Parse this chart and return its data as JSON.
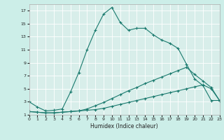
{
  "xlabel": "Humidex (Indice chaleur)",
  "bg_color": "#cceee8",
  "grid_bg_color": "#d8eeea",
  "line_color": "#1a7a6e",
  "grid_color": "#ffffff",
  "ylim": [
    1,
    18
  ],
  "xlim": [
    0,
    23
  ],
  "yticks": [
    1,
    3,
    5,
    7,
    9,
    11,
    13,
    15,
    17
  ],
  "xticks": [
    0,
    1,
    2,
    3,
    4,
    5,
    6,
    7,
    8,
    9,
    10,
    11,
    12,
    13,
    14,
    15,
    16,
    17,
    18,
    19,
    20,
    21,
    22,
    23
  ],
  "line1_x": [
    0,
    1,
    2,
    3,
    4,
    5,
    6,
    7,
    8,
    9,
    10,
    11,
    12,
    13,
    14,
    15,
    16,
    17,
    18,
    19,
    20,
    21,
    22,
    23
  ],
  "line1_y": [
    3.0,
    2.2,
    1.6,
    1.7,
    1.9,
    4.5,
    7.5,
    11.0,
    14.0,
    16.5,
    17.5,
    15.2,
    14.0,
    14.3,
    14.3,
    13.3,
    12.5,
    12.0,
    11.2,
    8.8,
    6.5,
    5.5,
    3.2,
    3.2
  ],
  "line2_x": [
    0,
    1,
    2,
    3,
    4,
    5,
    6,
    7,
    8,
    9,
    10,
    11,
    12,
    13,
    14,
    15,
    16,
    17,
    18,
    19,
    20,
    21,
    22,
    23
  ],
  "line2_y": [
    1.5,
    1.4,
    1.3,
    1.3,
    1.4,
    1.5,
    1.6,
    1.9,
    2.4,
    2.9,
    3.5,
    4.1,
    4.7,
    5.2,
    5.8,
    6.3,
    6.8,
    7.3,
    7.8,
    8.3,
    7.2,
    6.2,
    5.2,
    3.2
  ],
  "line3_x": [
    0,
    1,
    2,
    3,
    4,
    5,
    6,
    7,
    8,
    9,
    10,
    11,
    12,
    13,
    14,
    15,
    16,
    17,
    18,
    19,
    20,
    21,
    22,
    23
  ],
  "line3_y": [
    1.5,
    1.4,
    1.3,
    1.3,
    1.4,
    1.5,
    1.6,
    1.7,
    1.8,
    2.0,
    2.3,
    2.6,
    2.9,
    3.2,
    3.5,
    3.8,
    4.1,
    4.4,
    4.7,
    5.0,
    5.3,
    5.6,
    5.0,
    3.2
  ]
}
